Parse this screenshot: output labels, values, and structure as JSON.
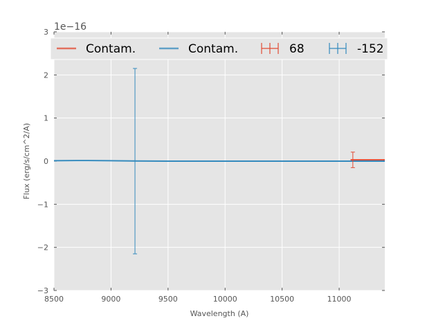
{
  "chart_data": {
    "type": "line",
    "xlabel": "Wavelength (A)",
    "ylabel": "Flux (erg/s/cm^2/A)",
    "y_offset_label": "1e−16",
    "xlim": [
      8500,
      11400
    ],
    "ylim": [
      -3,
      3
    ],
    "x_ticks": [
      8500,
      9000,
      9500,
      10000,
      10500,
      11000
    ],
    "x_tick_labels": [
      "8500",
      "9000",
      "9500",
      "10000",
      "10500",
      "11000"
    ],
    "y_ticks": [
      -3,
      -2,
      -1,
      0,
      1,
      2,
      3
    ],
    "y_tick_labels": [
      "−3",
      "−2",
      "−1",
      "0",
      "1",
      "2",
      "3"
    ],
    "grid": true,
    "legend_position": "top",
    "series": [
      {
        "name": "Contam.",
        "kind": "line",
        "color": "#e24a33",
        "x": [
          11100,
          11400
        ],
        "y": [
          0.03,
          0.03
        ]
      },
      {
        "name": "Contam.",
        "kind": "line",
        "color": "#348abd",
        "x": [
          8500,
          8700,
          9000,
          9210,
          9500,
          10000,
          10500,
          11000,
          11400
        ],
        "y": [
          0.01,
          0.015,
          0.01,
          0.005,
          0.0,
          0.0,
          0.0,
          0.0,
          0.0
        ]
      },
      {
        "name": "68",
        "kind": "errorbar",
        "color": "#e24a33",
        "x": [
          11120
        ],
        "y": [
          0.03
        ],
        "yerr": [
          0.18
        ]
      },
      {
        "name": "-152",
        "kind": "errorbar",
        "color": "#348abd",
        "x": [
          9210
        ],
        "y": [
          0.0
        ],
        "yerr": [
          2.15
        ]
      }
    ],
    "colors": {
      "background": "#e5e5e5",
      "grid": "#ffffff",
      "red": "#e24a33",
      "blue": "#348abd"
    }
  }
}
